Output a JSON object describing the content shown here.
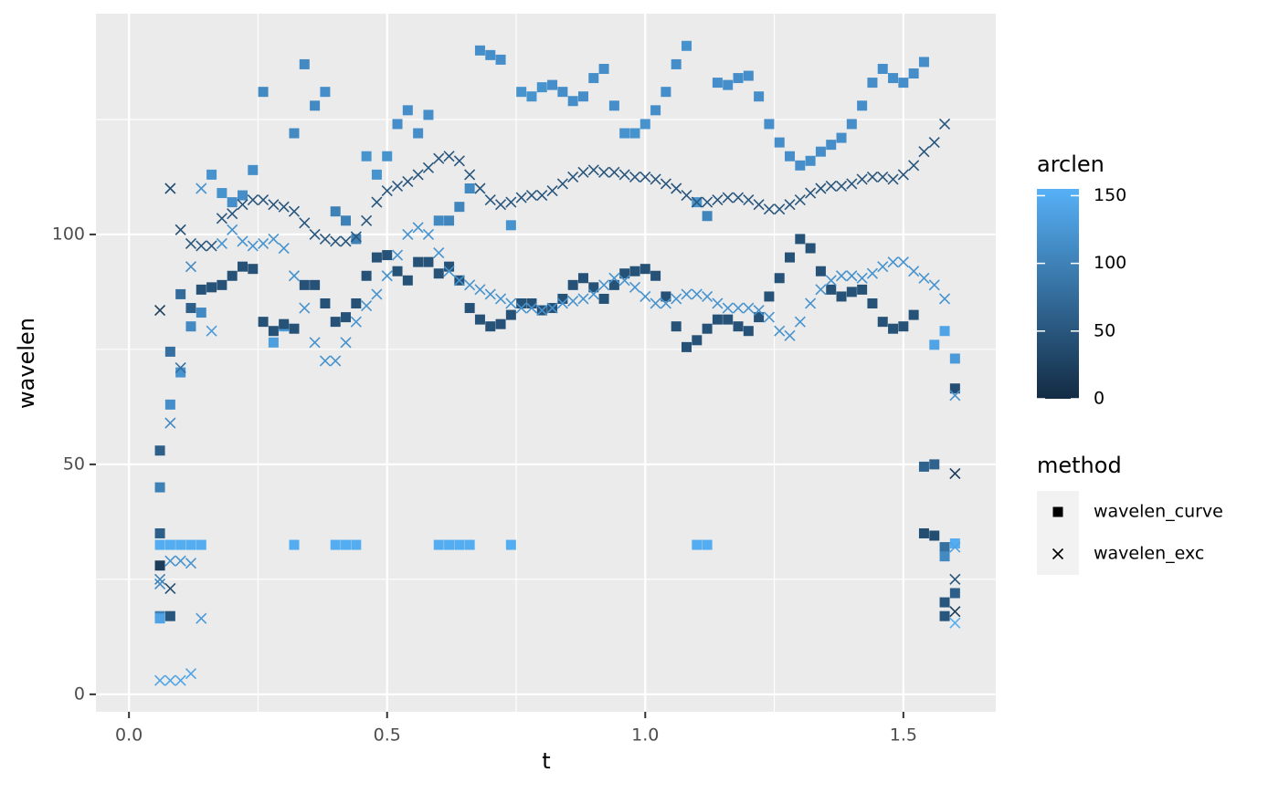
{
  "chart_data": {
    "type": "scatter",
    "x_label": "t",
    "y_label": "wavelen",
    "xlim": [
      -0.064,
      1.679
    ],
    "ylim": [
      -3.8,
      148
    ],
    "xticks": [
      {
        "value": 0,
        "label": "0.0"
      },
      0.5,
      {
        "value": 1,
        "label": "1.0"
      },
      1.5
    ],
    "yticks": [
      0,
      50,
      100
    ],
    "x_minor_ticks": [
      0.25,
      0.75,
      1.25
    ],
    "y_minor_ticks": [
      25,
      75,
      125
    ],
    "grid": true,
    "color_legend_title": "arclen",
    "color_scale": [
      "#132B43",
      "#56B1F7"
    ],
    "color_lim": [
      0,
      155
    ],
    "color_ticks": [
      0,
      50,
      100,
      150
    ],
    "shape_legend_title": "method",
    "series": [
      {
        "name": "wavelen_curve",
        "shape": "square",
        "legend_color": "#000000",
        "x": [
          0.06,
          0.08,
          0.1,
          0.12,
          0.14,
          0.16,
          0.18,
          0.2,
          0.22,
          0.24,
          0.26,
          0.28,
          0.3,
          0.32,
          0.34,
          0.36,
          0.38,
          0.4,
          0.42,
          0.44,
          0.46,
          0.48,
          0.5,
          0.52,
          0.54,
          0.56,
          0.58,
          0.6,
          0.62,
          0.64,
          0.66,
          0.68,
          0.7,
          0.72,
          0.74,
          0.76,
          0.78,
          0.8,
          0.82,
          0.84,
          0.86,
          0.88,
          0.9,
          0.92,
          0.94,
          0.96,
          0.98,
          1,
          1.02,
          1.04,
          1.06,
          1.08,
          1.1,
          1.12,
          1.14,
          1.16,
          1.18,
          1.2,
          1.22,
          1.24,
          1.26,
          1.28,
          1.3,
          1.32,
          1.34,
          1.36,
          1.38,
          1.4,
          1.42,
          1.44,
          1.46,
          1.48,
          1.5,
          1.52,
          1.54,
          1.56,
          1.58,
          1.6,
          0.06,
          0.08,
          0.1,
          0.12,
          0.14,
          0.16,
          0.18,
          0.2,
          0.22,
          0.24,
          0.26,
          0.28,
          0.3,
          0.32,
          0.34,
          0.36,
          0.38,
          0.4,
          0.42,
          0.44,
          0.46,
          0.48,
          0.5,
          0.52,
          0.54,
          0.56,
          0.58,
          0.6,
          0.62,
          0.64,
          0.66,
          0.68,
          0.7,
          0.72,
          0.74,
          0.76,
          0.78,
          0.8,
          0.82,
          0.84,
          0.86,
          0.88,
          0.9,
          0.92,
          0.94,
          0.96,
          0.98,
          1,
          1.02,
          1.04,
          1.06,
          1.08,
          1.1,
          1.12,
          1.14,
          1.16,
          1.18,
          1.2,
          1.22,
          1.24,
          1.26,
          1.28,
          1.3,
          1.32,
          1.34,
          1.36,
          1.38,
          1.4,
          1.42,
          1.44,
          1.46,
          1.48,
          1.5,
          1.52,
          1.54,
          1.56,
          1.58,
          1.6,
          0.06,
          0.08,
          0.1,
          0.12,
          0.14,
          0.32,
          0.4,
          0.42,
          0.44,
          0.6,
          0.62,
          0.64,
          0.66,
          0.74,
          1.1,
          1.12,
          1.6,
          0.06,
          0.06,
          0.06,
          0.08,
          0.06,
          1.54,
          1.56,
          1.58,
          1.58,
          1.58,
          1.6
        ],
        "values": [
          45,
          63,
          70,
          80,
          83,
          113,
          109,
          107,
          108.5,
          114,
          131,
          76.5,
          80,
          122,
          137,
          128,
          131,
          105,
          103,
          99,
          117,
          113,
          117,
          124,
          127,
          122,
          126,
          103,
          103,
          106,
          110,
          140,
          139,
          138,
          102,
          131,
          130,
          132,
          132.5,
          131,
          129,
          130,
          134,
          136,
          128,
          122,
          122,
          124,
          127,
          131,
          137,
          141,
          107,
          104,
          133,
          132.5,
          134,
          134.5,
          130,
          124,
          120,
          117,
          115,
          116,
          118,
          119.5,
          121,
          124,
          128,
          133,
          136,
          134,
          133,
          135,
          137.5,
          76,
          79,
          73,
          53,
          74.5,
          87,
          84,
          88,
          88.5,
          89,
          91,
          93,
          92.5,
          81,
          79,
          80.5,
          79.5,
          89,
          89,
          85,
          81,
          82,
          85,
          91,
          95,
          95.5,
          92,
          90,
          94,
          94,
          91.5,
          93,
          90,
          84,
          81.5,
          80,
          80.5,
          82.5,
          85,
          85,
          83.5,
          84,
          86,
          89,
          90.5,
          88.5,
          86,
          89,
          91.5,
          92,
          92.5,
          91,
          86.5,
          80,
          75.5,
          77,
          79.5,
          81.5,
          81.5,
          80,
          79,
          82,
          86.5,
          90.5,
          95,
          99,
          97,
          92,
          88,
          86.5,
          87.5,
          88,
          85,
          81,
          79.5,
          80,
          82.5,
          49.5,
          50,
          32,
          66.5,
          32.5,
          32.5,
          32.5,
          32.5,
          32.5,
          32.5,
          32.5,
          32.5,
          32.5,
          32.5,
          32.5,
          32.5,
          32.5,
          32.5,
          32.5,
          32.5,
          32.8,
          35,
          28,
          17,
          17,
          16.5,
          35,
          34.5,
          30,
          20,
          17,
          22
        ],
        "arclen": [
          100,
          115,
          120,
          110,
          110,
          120,
          120,
          115,
          115,
          115,
          110,
          135,
          130,
          110,
          110,
          110,
          115,
          100,
          100,
          100,
          120,
          120,
          120,
          115,
          115,
          115,
          115,
          110,
          105,
          105,
          110,
          115,
          115,
          115,
          120,
          120,
          120,
          120,
          115,
          115,
          115,
          115,
          115,
          115,
          115,
          120,
          120,
          120,
          115,
          115,
          115,
          120,
          120,
          105,
          115,
          115,
          115,
          115,
          115,
          115,
          115,
          115,
          115,
          115,
          115,
          115,
          115,
          115,
          115,
          115,
          115,
          115,
          115,
          115,
          115,
          140,
          140,
          130,
          60,
          80,
          75,
          60,
          45,
          45,
          45,
          45,
          45,
          45,
          45,
          45,
          45,
          45,
          45,
          45,
          45,
          45,
          45,
          45,
          45,
          45,
          45,
          45,
          45,
          45,
          45,
          45,
          45,
          45,
          45,
          45,
          45,
          45,
          45,
          45,
          45,
          45,
          45,
          45,
          45,
          45,
          45,
          45,
          45,
          45,
          45,
          45,
          45,
          45,
          45,
          45,
          45,
          45,
          45,
          45,
          45,
          45,
          45,
          45,
          45,
          45,
          45,
          45,
          45,
          45,
          45,
          45,
          45,
          45,
          45,
          45,
          45,
          45,
          65,
          65,
          80,
          40,
          150,
          150,
          150,
          150,
          150,
          150,
          150,
          150,
          150,
          150,
          150,
          150,
          150,
          150,
          150,
          150,
          150,
          60,
          20,
          100,
          50,
          140,
          40,
          40,
          110,
          50,
          50,
          60
        ]
      },
      {
        "name": "wavelen_exc",
        "shape": "cross",
        "legend_color": "#000000",
        "x": [
          0.06,
          0.08,
          0.1,
          0.12,
          0.14,
          0.16,
          0.18,
          0.2,
          0.22,
          0.24,
          0.26,
          0.28,
          0.3,
          0.32,
          0.34,
          0.36,
          0.38,
          0.4,
          0.42,
          0.44,
          0.46,
          0.48,
          0.5,
          0.52,
          0.54,
          0.56,
          0.58,
          0.6,
          0.62,
          0.64,
          0.66,
          0.68,
          0.7,
          0.72,
          0.74,
          0.76,
          0.78,
          0.8,
          0.82,
          0.84,
          0.86,
          0.88,
          0.9,
          0.92,
          0.94,
          0.96,
          0.98,
          1,
          1.02,
          1.04,
          1.06,
          1.08,
          1.1,
          1.12,
          1.14,
          1.16,
          1.18,
          1.2,
          1.22,
          1.24,
          1.26,
          1.28,
          1.3,
          1.32,
          1.34,
          1.36,
          1.38,
          1.4,
          1.42,
          1.44,
          1.46,
          1.48,
          1.5,
          1.52,
          1.54,
          1.56,
          1.58,
          1.6,
          0.06,
          0.08,
          0.1,
          0.12,
          0.14,
          0.16,
          0.18,
          0.2,
          0.22,
          0.24,
          0.26,
          0.28,
          0.3,
          0.32,
          0.34,
          0.36,
          0.38,
          0.4,
          0.42,
          0.44,
          0.46,
          0.48,
          0.5,
          0.52,
          0.54,
          0.56,
          0.58,
          0.6,
          0.62,
          0.64,
          0.66,
          0.68,
          0.7,
          0.72,
          0.74,
          0.76,
          0.78,
          0.8,
          0.82,
          0.84,
          0.86,
          0.88,
          0.9,
          0.92,
          0.94,
          0.96,
          0.98,
          1,
          1.02,
          1.04,
          1.06,
          1.08,
          1.1,
          1.12,
          1.14,
          1.16,
          1.18,
          1.2,
          1.22,
          1.24,
          1.26,
          1.28,
          1.3,
          1.32,
          1.34,
          1.36,
          1.38,
          1.4,
          1.42,
          1.44,
          1.46,
          1.48,
          1.5,
          1.52,
          1.54,
          1.56,
          1.58,
          1.6,
          0.06,
          0.08,
          0.1,
          0.12,
          0.06,
          0.08,
          0.08,
          0.1,
          0.12,
          0.14,
          1.6,
          1.6,
          1.6,
          1.6
        ],
        "values": [
          83.5,
          110,
          101,
          98,
          97.5,
          97.5,
          103.5,
          104.5,
          106.5,
          107.5,
          107.5,
          106.5,
          106,
          105,
          102.5,
          100,
          99,
          98.5,
          98.5,
          99.5,
          103,
          107,
          109.5,
          110.5,
          111.5,
          113,
          114.5,
          116.5,
          117,
          116,
          113,
          110,
          107.5,
          106.5,
          107,
          108,
          108.5,
          108.5,
          109.5,
          111,
          112.5,
          113.5,
          114,
          113.5,
          113.5,
          113,
          112.5,
          112.5,
          112,
          111,
          110,
          108.5,
          107,
          107,
          107.5,
          108,
          108,
          107.5,
          106.5,
          105.5,
          105.5,
          106.5,
          107.5,
          109,
          110,
          110.5,
          110.5,
          111,
          112,
          112.5,
          112.5,
          112,
          113,
          115,
          118,
          120,
          124,
          48,
          24,
          59,
          71,
          93,
          110,
          79,
          98,
          101,
          98.5,
          97.5,
          98,
          99,
          97,
          91,
          84,
          76.5,
          72.5,
          72.5,
          76.5,
          81,
          84.5,
          87,
          91,
          95.5,
          100,
          101.5,
          100,
          96,
          92,
          90,
          89,
          88,
          87,
          86,
          85,
          84,
          84,
          83.5,
          84,
          85,
          85.5,
          86,
          87,
          89,
          90.5,
          90,
          88.5,
          86.5,
          85,
          85,
          86,
          87,
          87,
          86.5,
          85,
          84,
          84,
          84,
          83.5,
          82,
          79,
          78,
          81,
          85,
          88,
          90,
          91,
          91,
          90.5,
          91.5,
          93,
          94,
          94,
          92,
          90.5,
          89,
          86,
          65,
          3,
          3,
          3,
          4.5,
          25,
          23,
          29,
          29,
          28.5,
          16.5,
          32,
          25,
          18,
          15.5
        ],
        "arclen": [
          20,
          40,
          40,
          50,
          50,
          50,
          50,
          50,
          50,
          50,
          50,
          50,
          50,
          50,
          50,
          50,
          50,
          50,
          50,
          50,
          50,
          50,
          50,
          50,
          50,
          50,
          50,
          50,
          50,
          50,
          50,
          50,
          50,
          50,
          50,
          50,
          50,
          50,
          50,
          50,
          50,
          50,
          50,
          50,
          50,
          50,
          50,
          50,
          50,
          50,
          50,
          50,
          50,
          50,
          50,
          50,
          50,
          50,
          50,
          50,
          50,
          50,
          50,
          50,
          50,
          50,
          50,
          50,
          50,
          50,
          50,
          50,
          50,
          50,
          50,
          50,
          50,
          20,
          110,
          110,
          80,
          110,
          120,
          130,
          120,
          120,
          120,
          120,
          120,
          120,
          120,
          120,
          120,
          120,
          120,
          120,
          120,
          120,
          120,
          120,
          120,
          120,
          120,
          120,
          120,
          120,
          120,
          120,
          120,
          120,
          120,
          120,
          120,
          120,
          120,
          120,
          120,
          120,
          120,
          120,
          120,
          120,
          120,
          120,
          120,
          120,
          120,
          120,
          120,
          120,
          120,
          120,
          120,
          120,
          120,
          120,
          120,
          120,
          120,
          120,
          120,
          120,
          120,
          120,
          120,
          120,
          120,
          120,
          120,
          120,
          120,
          120,
          120,
          120,
          120,
          120,
          140,
          140,
          140,
          140,
          100,
          40,
          120,
          120,
          120,
          130,
          140,
          50,
          20,
          150
        ]
      }
    ]
  }
}
